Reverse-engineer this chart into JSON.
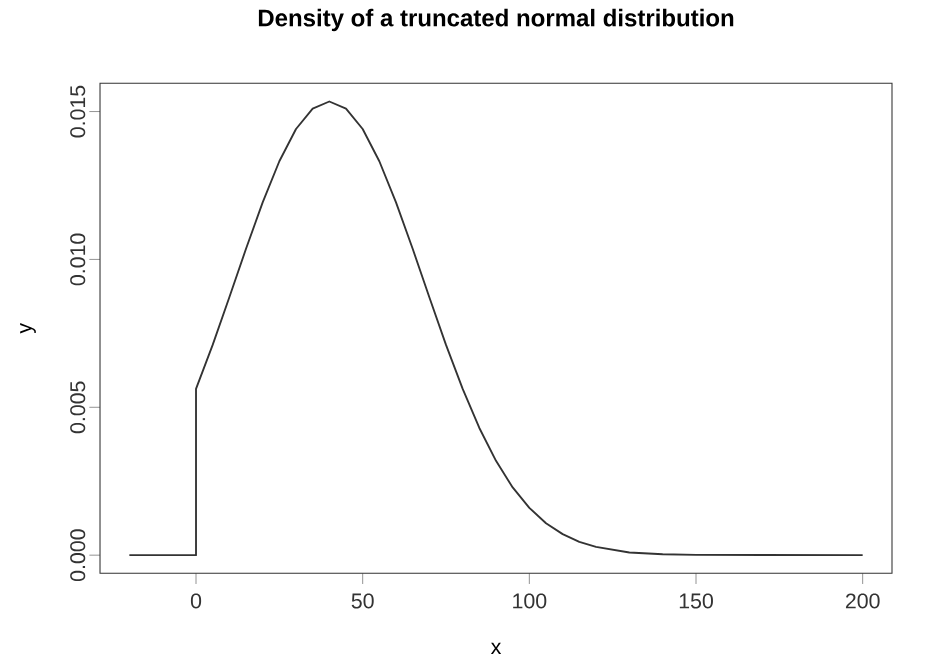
{
  "chart_data": {
    "type": "line",
    "title": "Density of a truncated normal distribution",
    "xlabel": "x",
    "ylabel": "y",
    "color": "#333333",
    "x": [
      -20,
      0,
      0,
      5,
      10,
      15,
      20,
      25,
      30,
      35,
      40,
      45,
      50,
      55,
      60,
      65,
      70,
      75,
      80,
      85,
      90,
      95,
      100,
      105,
      110,
      115,
      120,
      130,
      140,
      150,
      200
    ],
    "values": [
      0,
      0,
      0.00562,
      0.00711,
      0.00872,
      0.01036,
      0.01193,
      0.01332,
      0.01441,
      0.0151,
      0.01534,
      0.0151,
      0.01441,
      0.01332,
      0.01193,
      0.01036,
      0.00872,
      0.00711,
      0.00562,
      0.0043,
      0.00319,
      0.00229,
      0.0016,
      0.00108,
      0.00071,
      0.00045,
      0.00028,
      9e-05,
      3e-05,
      1e-05,
      0
    ],
    "xlim": [
      -28.8,
      208.8
    ],
    "ylim": [
      -0.000614,
      0.015954
    ],
    "xticks": [
      0,
      50,
      100,
      150,
      200
    ],
    "yticks": [
      {
        "value": 0,
        "label": "0.000"
      },
      {
        "value": 0.005,
        "label": "0.005"
      },
      {
        "value": 0.01,
        "label": "0.010"
      },
      {
        "value": 0.015,
        "label": "0.015"
      }
    ]
  }
}
